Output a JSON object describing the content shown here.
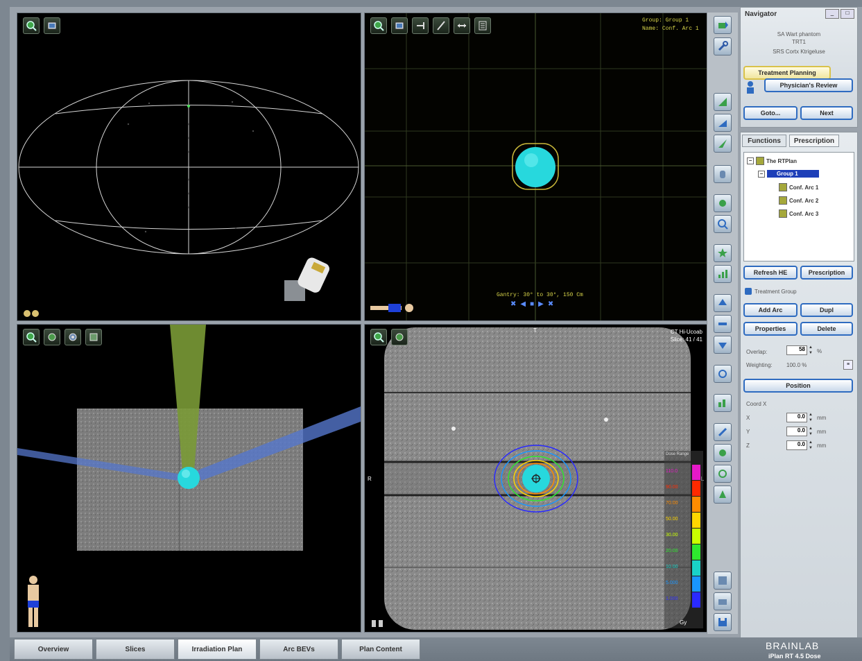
{
  "viewports": {
    "top_left": {
      "name": "Sphere projection"
    },
    "top_right": {
      "group_label": "Group:",
      "group_value": "Group 1",
      "name_label": "Name:",
      "name_value": "Conf. Arc 1",
      "gantry_text": "Gantry: 30° to 30°, 150 Cm"
    },
    "bottom_right": {
      "ct_title": "CT Hi-Ucoab",
      "slice_text": "Slice: 41 / 41",
      "dose_header": "Dose Range",
      "label_top": "T",
      "label_right_r": "R",
      "label_right_l": "L",
      "unit": "Gy",
      "legend": [
        {
          "label": "110.0",
          "color": "#e619c8"
        },
        {
          "label": "90.00",
          "color": "#ff2a00"
        },
        {
          "label": "70.00",
          "color": "#ff8c00"
        },
        {
          "label": "50.00",
          "color": "#ffd700"
        },
        {
          "label": "30.00",
          "color": "#c8ff00"
        },
        {
          "label": "20.00",
          "color": "#2ee82e"
        },
        {
          "label": "10.00",
          "color": "#19d2c8"
        },
        {
          "label": "5.000",
          "color": "#1996ff"
        },
        {
          "label": "1.000",
          "color": "#2a2aff"
        }
      ]
    }
  },
  "navigator": {
    "title": "Navigator",
    "lines": [
      "SA Wart phantom",
      "TRT1",
      "SRS Cortx Ktrigeluse"
    ],
    "treatment_planning": "Treatment Planning",
    "physicians_review": "Physician's Review",
    "goto": "Goto...",
    "next": "Next"
  },
  "functions": {
    "tab_functions": "Functions",
    "tab_prescription": "Prescription",
    "tree": {
      "root": "The RTPlan",
      "group": "Group 1",
      "arcs": [
        "Conf. Arc 1",
        "Conf. Arc 2",
        "Conf. Arc 3"
      ]
    },
    "refresh": "Refresh HE",
    "prescription_btn": "Prescription",
    "treatment_group": "Treatment Group",
    "add_arc": "Add Arc",
    "duplicate": "Dupl",
    "properties": "Properties",
    "delete": "Delete",
    "overlap_label": "Overlap:",
    "overlap_value": "58",
    "overlap_unit": "%",
    "weighting_label": "Weighting:",
    "weighting_value": "100.0 %",
    "position_btn": "Position",
    "coords_label": "Coord X",
    "coords": [
      {
        "axis": "X",
        "value": "0.0",
        "unit": "mm"
      },
      {
        "axis": "Y",
        "value": "0.0",
        "unit": "mm"
      },
      {
        "axis": "Z",
        "value": "0.0",
        "unit": "mm"
      }
    ]
  },
  "bottom_tabs": [
    "Overview",
    "Slices",
    "Irradiation Plan",
    "Arc BEVs",
    "Plan Content"
  ],
  "branding": {
    "logo": "BRAINLAB",
    "product": "iPlan RT 4.5 Dose"
  }
}
